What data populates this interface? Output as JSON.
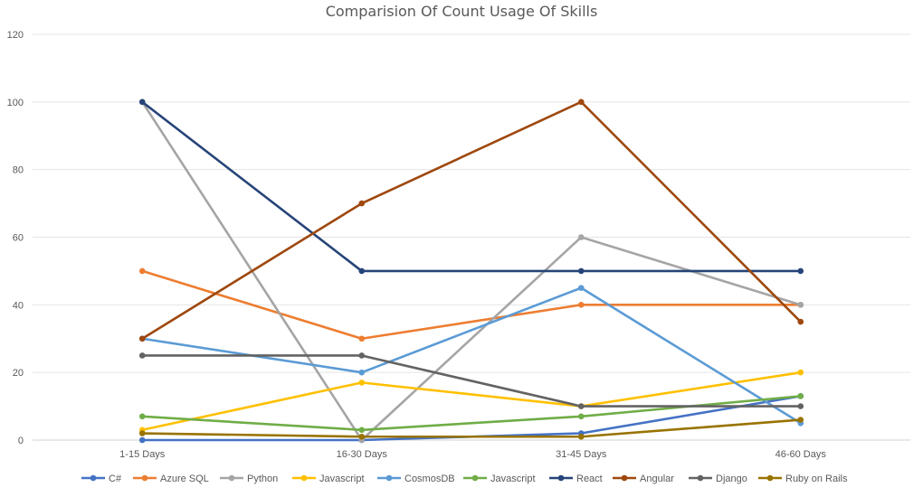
{
  "chart_data": {
    "type": "line",
    "title": "Comparision Of Count Usage Of Skills",
    "xlabel": "",
    "ylabel": "",
    "categories": [
      "1-15 Days",
      "16-30 Days",
      "31-45 Days",
      "46-60 Days"
    ],
    "ylim": [
      0,
      120
    ],
    "yticks": [
      0,
      20,
      40,
      60,
      80,
      100,
      120
    ],
    "grid": true,
    "legend_position": "bottom",
    "series": [
      {
        "name": "C#",
        "color": "#4472C4",
        "values": [
          0,
          0,
          2,
          13
        ]
      },
      {
        "name": "Azure SQL",
        "color": "#ED7D31",
        "values": [
          50,
          30,
          40,
          40
        ]
      },
      {
        "name": "Python",
        "color": "#A5A5A5",
        "values": [
          100,
          0,
          60,
          40
        ]
      },
      {
        "name": "Javascript",
        "color": "#FFC000",
        "values": [
          3,
          17,
          10,
          20
        ]
      },
      {
        "name": "CosmosDB",
        "color": "#5B9BD5",
        "values": [
          30,
          20,
          45,
          5
        ]
      },
      {
        "name": "Javascript",
        "color": "#70AD47",
        "values": [
          7,
          3,
          7,
          13
        ]
      },
      {
        "name": "React",
        "color": "#264478",
        "values": [
          100,
          50,
          50,
          50
        ]
      },
      {
        "name": "Angular",
        "color": "#9E480E",
        "values": [
          30,
          70,
          100,
          35
        ]
      },
      {
        "name": "Django",
        "color": "#636363",
        "values": [
          25,
          25,
          10,
          10
        ]
      },
      {
        "name": "Ruby on Rails",
        "color": "#997300",
        "values": [
          2,
          1,
          1,
          6
        ]
      }
    ]
  }
}
